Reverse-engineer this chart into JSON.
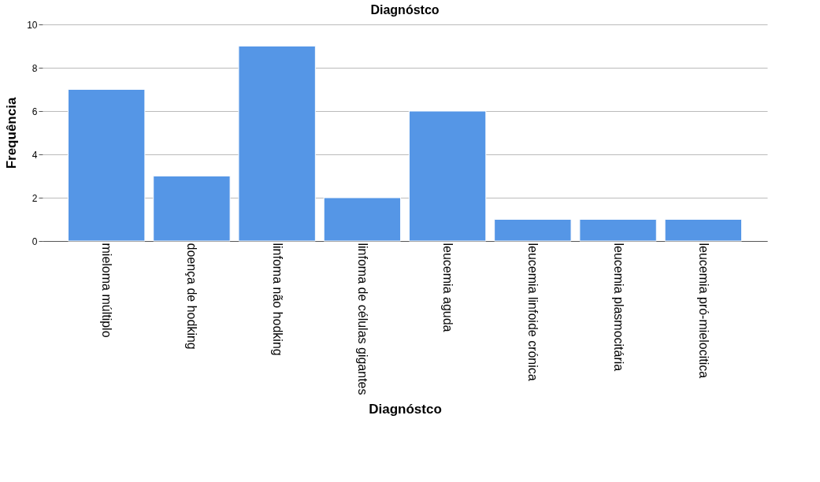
{
  "chart_data": {
    "type": "bar",
    "title": "Diagnóstco",
    "xlabel": "Diagnóstco",
    "ylabel": "Frequência",
    "categories": [
      "mieloma múltiplo",
      "doença de hodking",
      "linfoma não hodking",
      "linfoma de células gigantes",
      "leucemia aguda",
      "leucemia linfoide crónica",
      "leucemia plasmocitária",
      "leucemia pró-mielocitica"
    ],
    "values": [
      7,
      3,
      9,
      2,
      6,
      1,
      1,
      1
    ],
    "color": "#5596e6",
    "ylim": [
      0,
      10
    ],
    "yticks": [
      0,
      2,
      4,
      6,
      8,
      10
    ],
    "grid": "y"
  }
}
